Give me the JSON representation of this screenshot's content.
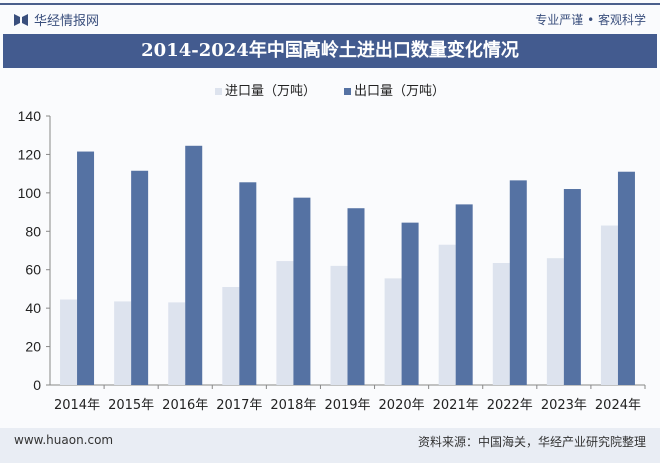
{
  "header": {
    "brand": "华经情报网",
    "slogan": "专业严谨 • 客观科学"
  },
  "footer": {
    "site": "www.huaon.com",
    "source": "资料来源：中国海关，华经产业研究院整理"
  },
  "colors": {
    "import": "#dde3ee",
    "export": "#5572a3",
    "title_bg": "#435b8f"
  },
  "chart_data": {
    "type": "bar",
    "title": "2014-2024年中国高岭土进出口数量变化情况",
    "categories": [
      "2014年",
      "2015年",
      "2016年",
      "2017年",
      "2018年",
      "2019年",
      "2020年",
      "2021年",
      "2022年",
      "2023年",
      "2024年"
    ],
    "series": [
      {
        "name": "进口量（万吨）",
        "values": [
          44.5,
          43.5,
          43,
          51,
          64.5,
          62,
          55.5,
          73,
          63.5,
          66,
          83
        ]
      },
      {
        "name": "出口量（万吨）",
        "values": [
          121.5,
          111.5,
          124.5,
          105.5,
          97.5,
          92,
          84.5,
          94,
          106.5,
          102,
          111
        ]
      }
    ],
    "ylim": [
      0,
      140
    ],
    "yticks": [
      "0",
      "20",
      "40",
      "60",
      "80",
      "100",
      "120",
      "140"
    ],
    "grid": false,
    "legend": "top-center"
  }
}
